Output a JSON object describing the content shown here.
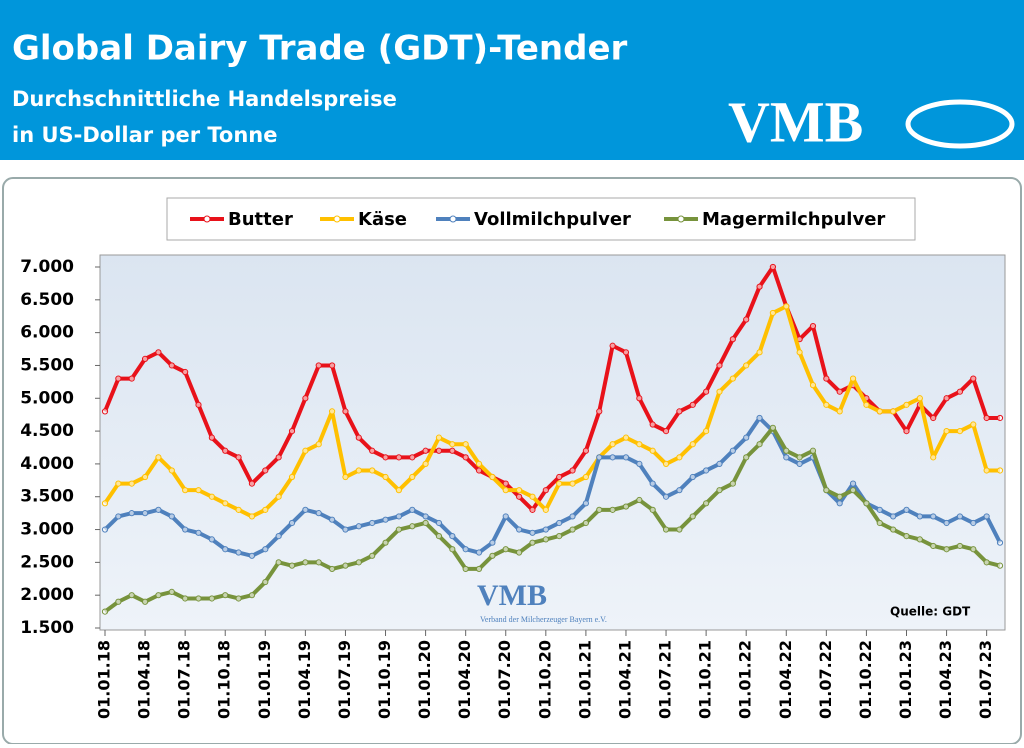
{
  "chart_data": {
    "type": "line",
    "title": "Global Dairy Trade (GDT)-Tender",
    "subtitle": [
      "Durchschnittliche Handelspreise",
      "in US-Dollar per Tonne"
    ],
    "logo": "VMB",
    "watermark": {
      "logo": "VMB",
      "text": "Verband der Milcherzeuger Bayern e.V."
    },
    "source": "Quelle:  GDT",
    "categories": [
      "01.01.18",
      null,
      null,
      "01.04.18",
      null,
      null,
      "01.07.18",
      null,
      null,
      "01.10.18",
      null,
      null,
      "01.01.19",
      null,
      null,
      "01.04.19",
      null,
      null,
      "01.07.19",
      null,
      null,
      "01.10.19",
      null,
      null,
      "01.01.20",
      null,
      null,
      "01.04.20",
      null,
      null,
      "01.07.20",
      null,
      null,
      "01.10.20",
      null,
      null,
      "01.01.21",
      null,
      null,
      "01.04.21",
      null,
      null,
      "01.07.21",
      null,
      null,
      "01.10.21",
      null,
      null,
      "01.01.22",
      null,
      null,
      "01.04.22",
      null,
      null,
      "01.07.22",
      null,
      null,
      "01.10.22",
      null,
      null,
      "01.01.23",
      null,
      null,
      "01.04.23",
      null,
      null,
      "01.07.23",
      null
    ],
    "series": [
      {
        "name": "Butter",
        "color": "#e8121a",
        "values": [
          4800,
          5300,
          5300,
          5600,
          5700,
          5500,
          5400,
          4900,
          4400,
          4200,
          4100,
          3700,
          3900,
          4100,
          4500,
          5000,
          5500,
          5500,
          4800,
          4400,
          4200,
          4100,
          4100,
          4100,
          4200,
          4200,
          4200,
          4100,
          3900,
          3800,
          3700,
          3500,
          3300,
          3600,
          3800,
          3900,
          4200,
          4800,
          5800,
          5700,
          5000,
          4600,
          4500,
          4800,
          4900,
          5100,
          5500,
          5900,
          6200,
          6700,
          7000,
          6400,
          5900,
          6100,
          5300,
          5100,
          5200,
          5000,
          4800,
          4800,
          4500,
          4900,
          4700,
          5000,
          5100,
          5300,
          4700,
          4700
        ]
      },
      {
        "name": "Käse",
        "color": "#ffc000",
        "values": [
          3400,
          3700,
          3700,
          3800,
          4100,
          3900,
          3600,
          3600,
          3500,
          3400,
          3300,
          3200,
          3300,
          3500,
          3800,
          4200,
          4300,
          4800,
          3800,
          3900,
          3900,
          3800,
          3600,
          3800,
          4000,
          4400,
          4300,
          4300,
          4000,
          3800,
          3600,
          3600,
          3500,
          3300,
          3700,
          3700,
          3800,
          4100,
          4300,
          4400,
          4300,
          4200,
          4000,
          4100,
          4300,
          4500,
          5100,
          5300,
          5500,
          5700,
          6300,
          6400,
          5700,
          5200,
          4900,
          4800,
          5300,
          4900,
          4800,
          4800,
          4900,
          5000,
          4100,
          4500,
          4500,
          4600,
          3900,
          3900
        ]
      },
      {
        "name": "Vollmilchpulver",
        "color": "#4f81bd",
        "values": [
          3000,
          3200,
          3250,
          3250,
          3300,
          3200,
          3000,
          2950,
          2850,
          2700,
          2650,
          2600,
          2700,
          2900,
          3100,
          3300,
          3250,
          3150,
          3000,
          3050,
          3100,
          3150,
          3200,
          3300,
          3200,
          3100,
          2900,
          2700,
          2650,
          2800,
          3200,
          3000,
          2950,
          3000,
          3100,
          3200,
          3400,
          4100,
          4100,
          4100,
          4000,
          3700,
          3500,
          3600,
          3800,
          3900,
          4000,
          4200,
          4400,
          4700,
          4500,
          4100,
          4000,
          4100,
          3600,
          3400,
          3700,
          3400,
          3300,
          3200,
          3300,
          3200,
          3200,
          3100,
          3200,
          3100,
          3200,
          2800
        ]
      },
      {
        "name": "Magermilchpulver",
        "color": "#77933c",
        "values": [
          1750,
          1900,
          2000,
          1900,
          2000,
          2050,
          1950,
          1950,
          1950,
          2000,
          1950,
          2000,
          2200,
          2500,
          2450,
          2500,
          2500,
          2400,
          2450,
          2500,
          2600,
          2800,
          3000,
          3050,
          3100,
          2900,
          2700,
          2400,
          2400,
          2600,
          2700,
          2650,
          2800,
          2850,
          2900,
          3000,
          3100,
          3300,
          3300,
          3350,
          3450,
          3300,
          3000,
          3000,
          3200,
          3400,
          3600,
          3700,
          4100,
          4300,
          4550,
          4200,
          4100,
          4200,
          3600,
          3500,
          3600,
          3400,
          3100,
          3000,
          2900,
          2850,
          2750,
          2700,
          2750,
          2700,
          2500,
          2450
        ]
      }
    ],
    "ylim": [
      1500,
      7000
    ],
    "yticks": [
      {
        "value": 1500,
        "label": "1.500"
      },
      {
        "value": 2000,
        "label": "2.000"
      },
      {
        "value": 2500,
        "label": "2.500"
      },
      {
        "value": 3000,
        "label": "3.000"
      },
      {
        "value": 3500,
        "label": "3.500"
      },
      {
        "value": 4000,
        "label": "4.000"
      },
      {
        "value": 4500,
        "label": "4.500"
      },
      {
        "value": 5000,
        "label": "5.000"
      },
      {
        "value": 5500,
        "label": "5.500"
      },
      {
        "value": 6000,
        "label": "6.000"
      },
      {
        "value": 6500,
        "label": "6.500"
      },
      {
        "value": 7000,
        "label": "7.000"
      }
    ],
    "grid": false,
    "legend": "top"
  }
}
